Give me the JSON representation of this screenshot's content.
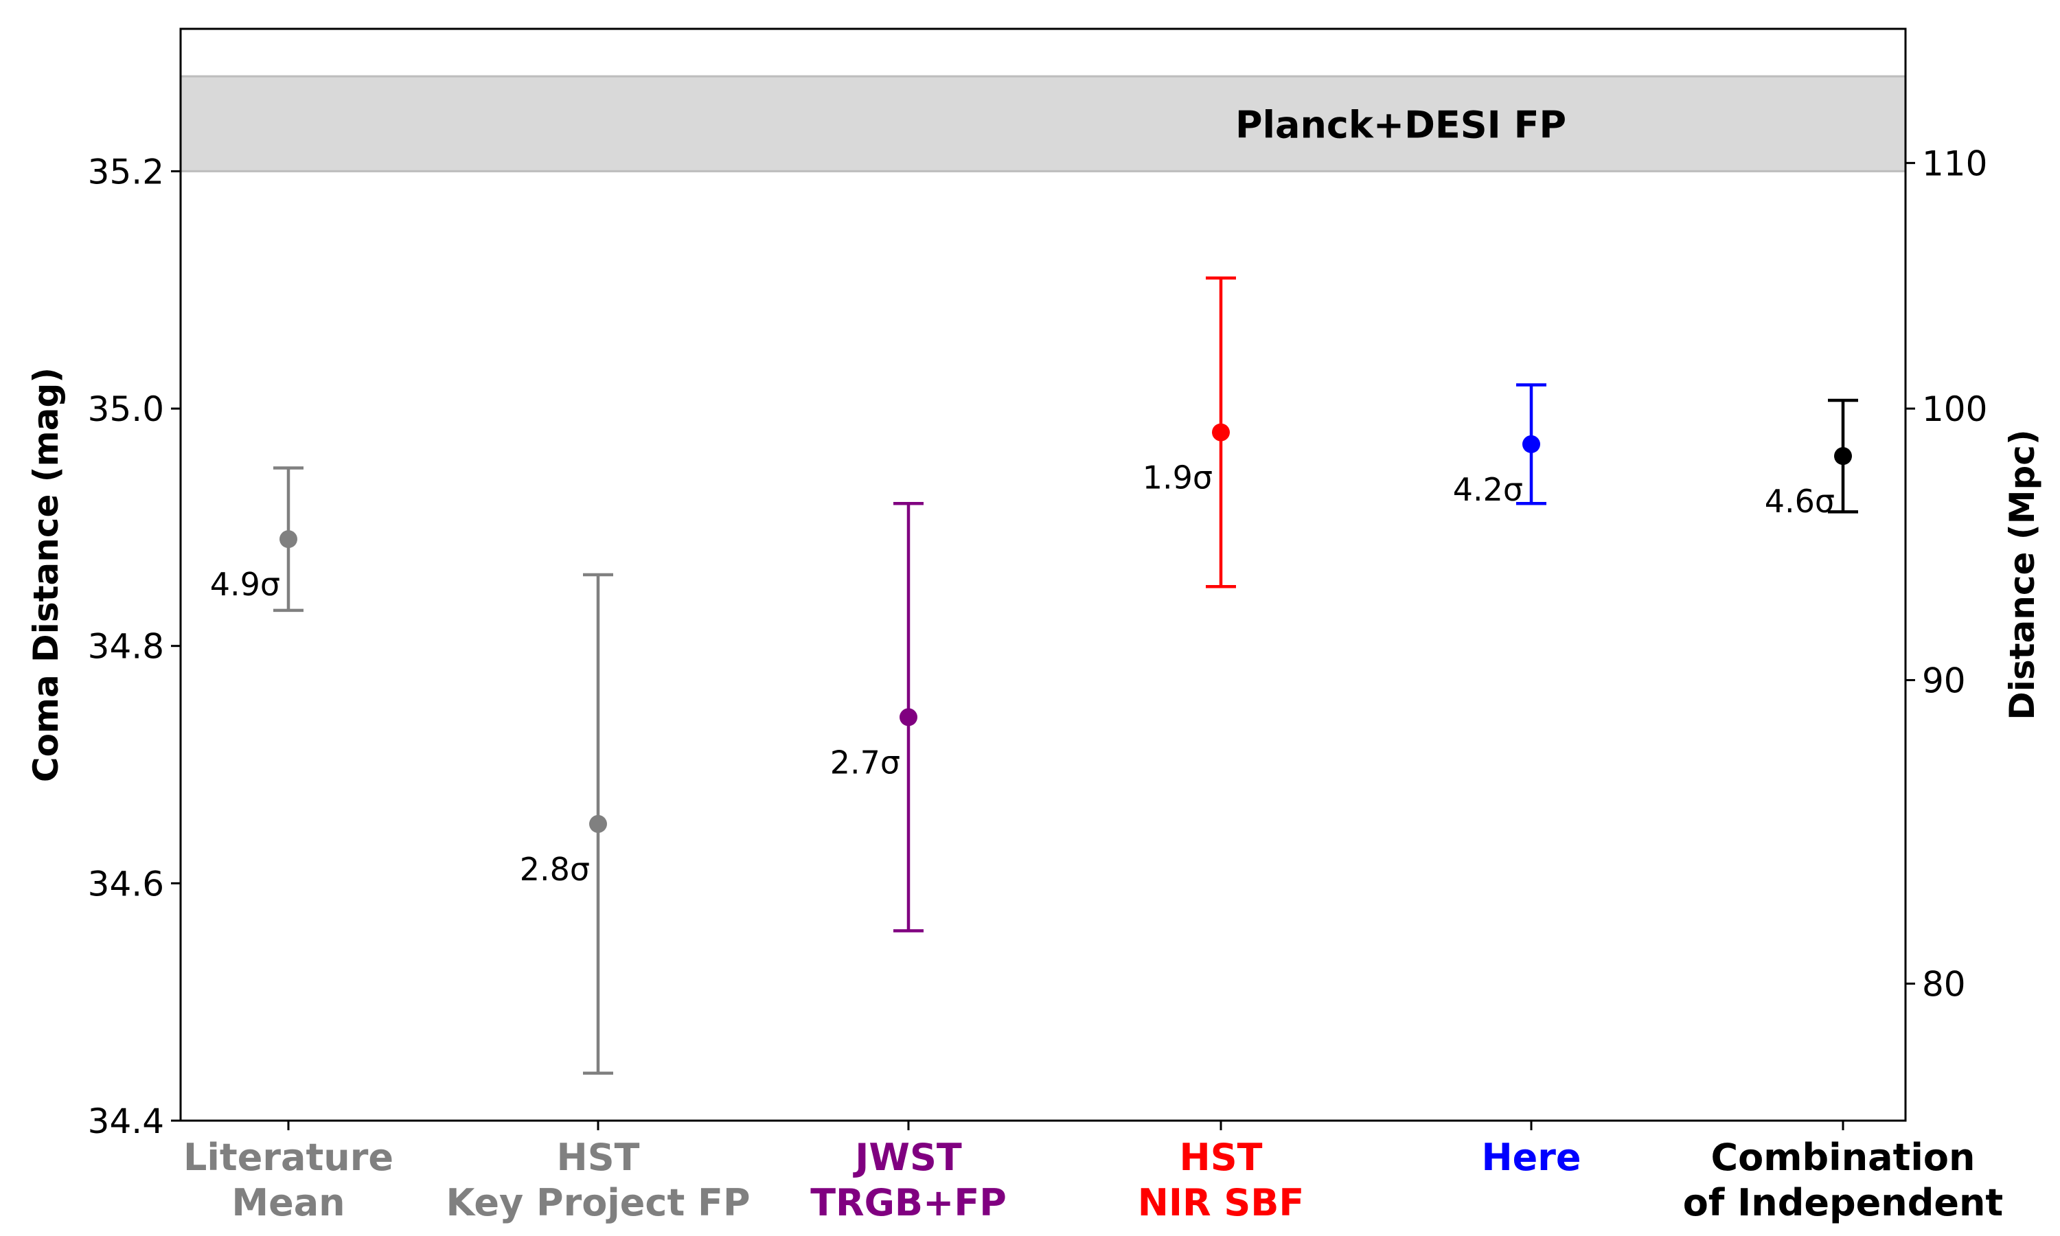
{
  "chart_data": {
    "type": "scatter",
    "subtype": "errorbar",
    "ylabel": "Coma Distance (mag)",
    "y2label": "Distance (Mpc)",
    "ylim": [
      34.4,
      35.32
    ],
    "yticks": [
      "34.4",
      "34.6",
      "34.8",
      "35.0",
      "35.2"
    ],
    "y2ticks": [
      "80",
      "90",
      "100",
      "110"
    ],
    "grid": false,
    "band": {
      "label": "Planck+DESI FP",
      "y_low": 35.2,
      "y_high": 35.28,
      "color": "#d9d9d9"
    },
    "points": [
      {
        "category": [
          "Literature",
          "Mean"
        ],
        "y": 34.89,
        "err_low": 0.06,
        "err_high": 0.06,
        "sigma": "4.9σ",
        "color": "#808080"
      },
      {
        "category": [
          "HST",
          "Key Project FP"
        ],
        "y": 34.65,
        "err_low": 0.21,
        "err_high": 0.21,
        "sigma": "2.8σ",
        "color": "#808080"
      },
      {
        "category": [
          "JWST",
          "TRGB+FP"
        ],
        "y": 34.74,
        "err_low": 0.18,
        "err_high": 0.18,
        "sigma": "2.7σ",
        "color": "#800080"
      },
      {
        "category": [
          "HST",
          "NIR SBF"
        ],
        "y": 34.98,
        "err_low": 0.13,
        "err_high": 0.13,
        "sigma": "1.9σ",
        "color": "#ff0000"
      },
      {
        "category": [
          "Here"
        ],
        "y": 34.97,
        "err_low": 0.05,
        "err_high": 0.05,
        "sigma": "4.2σ",
        "color": "#0000ff"
      },
      {
        "category": [
          "Combination",
          "of Independent"
        ],
        "y": 34.96,
        "err_low": 0.047,
        "err_high": 0.047,
        "sigma": "4.6σ",
        "color": "#000000"
      }
    ]
  }
}
